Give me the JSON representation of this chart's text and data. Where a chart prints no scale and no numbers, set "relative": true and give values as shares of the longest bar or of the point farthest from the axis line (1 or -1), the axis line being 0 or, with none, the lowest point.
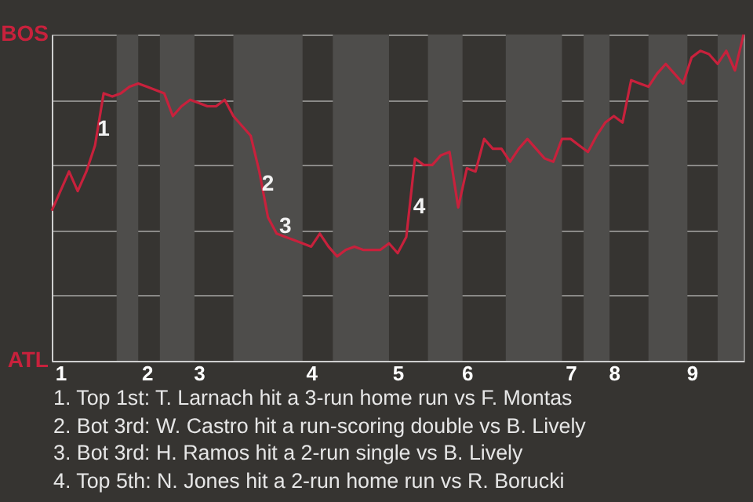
{
  "chart_data": {
    "type": "line",
    "relative": true,
    "categories": [
      null,
      "1",
      null,
      null,
      null,
      null,
      null,
      null,
      null,
      null,
      null,
      "2",
      null,
      null,
      null,
      null,
      null,
      "3",
      null,
      null,
      null,
      null,
      null,
      null,
      null,
      null,
      null,
      null,
      null,
      null,
      "4",
      null,
      null,
      null,
      null,
      null,
      null,
      null,
      null,
      null,
      "5",
      null,
      null,
      null,
      null,
      null,
      null,
      null,
      "6",
      null,
      null,
      null,
      null,
      null,
      null,
      null,
      null,
      null,
      null,
      null,
      "7",
      null,
      null,
      null,
      null,
      "8",
      null,
      null,
      null,
      null,
      null,
      null,
      null,
      null,
      "9",
      null,
      null,
      null,
      null,
      null,
      null
    ],
    "series": [
      {
        "color": "#c8213c",
        "values": [
          0.46,
          0.52,
          0.58,
          0.52,
          0.58,
          0.66,
          0.82,
          0.81,
          0.82,
          0.84,
          0.85,
          0.84,
          0.83,
          0.82,
          0.75,
          0.78,
          0.8,
          0.79,
          0.78,
          0.78,
          0.8,
          0.75,
          0.72,
          0.69,
          0.58,
          0.44,
          0.39,
          0.38,
          0.37,
          0.36,
          0.35,
          0.39,
          0.35,
          0.32,
          0.34,
          0.35,
          0.34,
          0.34,
          0.34,
          0.36,
          0.33,
          0.38,
          0.62,
          0.6,
          0.6,
          0.63,
          0.64,
          0.47,
          0.59,
          0.58,
          0.68,
          0.65,
          0.65,
          0.61,
          0.65,
          0.68,
          0.65,
          0.62,
          0.61,
          0.68,
          0.68,
          0.66,
          0.64,
          0.69,
          0.73,
          0.75,
          0.73,
          0.86,
          0.85,
          0.84,
          0.88,
          0.91,
          0.88,
          0.85,
          0.93,
          0.95,
          0.94,
          0.91,
          0.95,
          0.89,
          1.0
        ]
      }
    ],
    "grid": "y",
    "annotations": [
      "BOS",
      "ATL",
      "1",
      "2",
      "3",
      "4",
      "1. Top 1st: T. Larnach hit a 3-run home run vs F. Montas",
      "2. Bot 3rd: W. Castro hit a run-scoring double vs B. Lively",
      "3. Bot 3rd: H. Ramos hit a 2-run single vs B. Lively",
      "4. Top 5th: N. Jones hit a 2-run home run vs R. Borucki"
    ]
  }
}
